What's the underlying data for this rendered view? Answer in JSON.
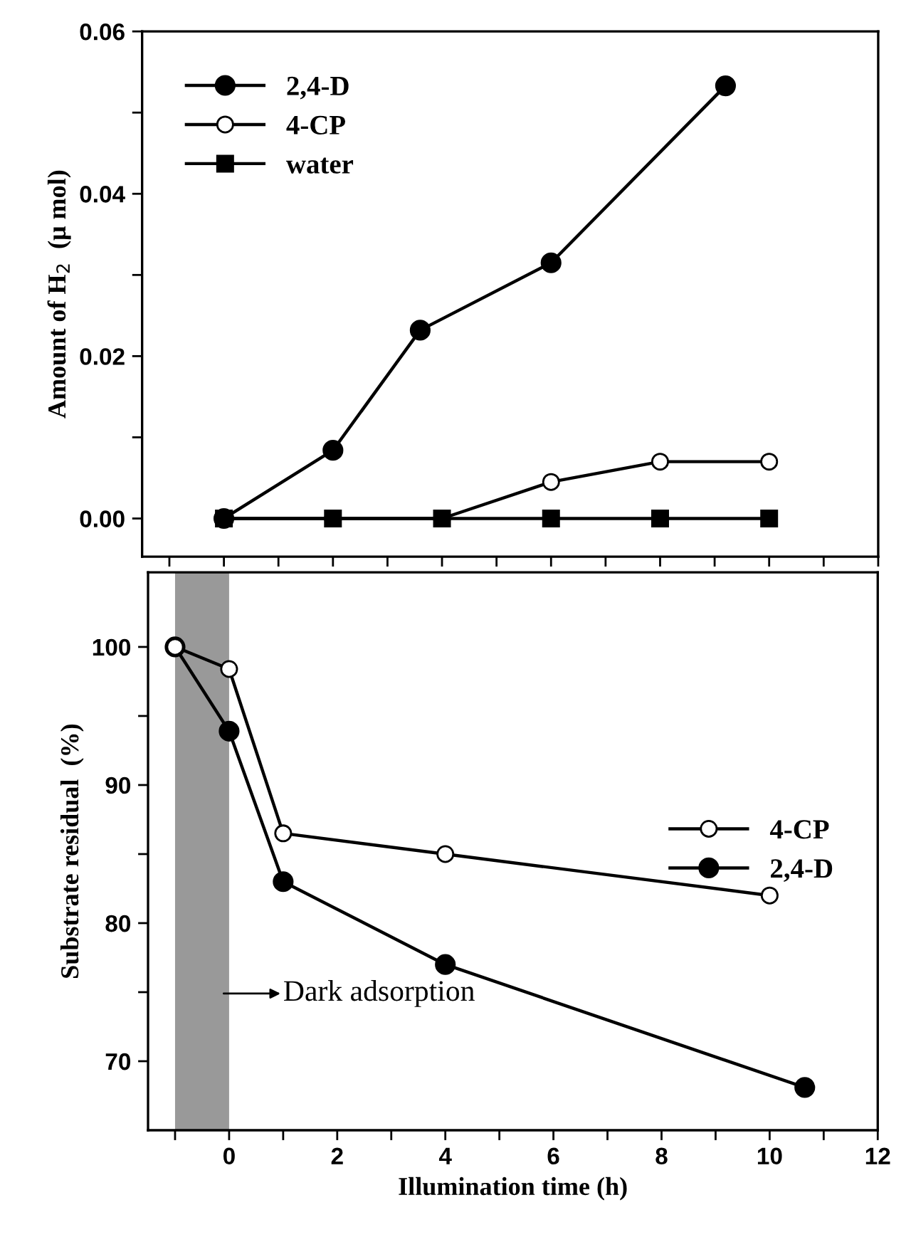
{
  "chart_data": [
    {
      "type": "line",
      "ylabel": "Amount of H$_{2}$  (μ mol)",
      "xlim": [
        -1.5,
        12
      ],
      "ylim": [
        -0.0047,
        0.06
      ],
      "xticks": [
        {
          "value": -1,
          "label": null
        },
        {
          "value": 0,
          "label": null
        },
        {
          "value": 1,
          "label": null
        },
        {
          "value": 2,
          "label": null
        },
        {
          "value": 3,
          "label": null
        },
        {
          "value": 4,
          "label": null
        },
        {
          "value": 5,
          "label": null
        },
        {
          "value": 6,
          "label": null
        },
        {
          "value": 7,
          "label": null
        },
        {
          "value": 8,
          "label": null
        },
        {
          "value": 9,
          "label": null
        },
        {
          "value": 10,
          "label": null
        },
        {
          "value": 11,
          "label": null
        },
        {
          "value": 12,
          "label": null
        }
      ],
      "yticks": [
        {
          "value": 0,
          "label": "0.00"
        },
        {
          "value": 0.01,
          "label": null
        },
        {
          "value": 0.02,
          "label": "0.02"
        },
        {
          "value": 0.03,
          "label": null
        },
        {
          "value": 0.04,
          "label": "0.04"
        },
        {
          "value": 0.05,
          "label": null
        },
        {
          "value": 0.06,
          "label": "0.06"
        }
      ],
      "tick_labels": "y",
      "legend": "top left",
      "grid": false,
      "series": [
        {
          "name": "2,4-D",
          "color": "#000000",
          "marker": "circle",
          "x": [
            0,
            2,
            3.6,
            6,
            9.2
          ],
          "values": [
            0,
            0.0084,
            0.0232,
            0.0315,
            0.0533
          ]
        },
        {
          "name": "4-CP",
          "color": "#000000",
          "marker": "circle",
          "colors": [
            "#ffffff",
            "#ffffff",
            "#ffffff",
            "#ffffff",
            "#ffffff",
            "#ffffff"
          ],
          "x": [
            0,
            2,
            4,
            6,
            8,
            10
          ],
          "values": [
            0,
            0,
            0,
            0.0045,
            0.007,
            0.007
          ]
        },
        {
          "name": "water",
          "color": "#000000",
          "marker": "square",
          "x": [
            0,
            2,
            4,
            6,
            8,
            10
          ],
          "values": [
            0,
            0,
            0,
            0,
            0,
            0
          ]
        }
      ]
    },
    {
      "type": "line",
      "xlabel": "Illumination time (h)",
      "ylabel": "Substrate residual  (%)",
      "xlim": [
        -1.5,
        12
      ],
      "ylim": [
        65,
        105.4
      ],
      "xticks": [
        {
          "value": -1,
          "label": null
        },
        0,
        {
          "value": 1,
          "label": null
        },
        2,
        {
          "value": 3,
          "label": null
        },
        4,
        {
          "value": 5,
          "label": null
        },
        6,
        {
          "value": 7,
          "label": null
        },
        8,
        {
          "value": 9,
          "label": null
        },
        10,
        {
          "value": 11,
          "label": null
        },
        12
      ],
      "yticks": [
        70,
        {
          "value": 75,
          "label": null
        },
        80,
        {
          "value": 85,
          "label": null
        },
        90,
        {
          "value": 95,
          "label": null
        },
        100
      ],
      "legend": "right",
      "grid": false,
      "bands": [
        {
          "axis": "x",
          "from": -1,
          "to": 0,
          "label": "Dark adsorption",
          "color": "#999999"
        }
      ],
      "series": [
        {
          "name": "4-CP",
          "color": "#000000",
          "marker": "circle",
          "colors": [
            "#ffffff",
            "#ffffff",
            "#ffffff",
            "#ffffff",
            "#ffffff"
          ],
          "x": [
            -1,
            0,
            1,
            4,
            10
          ],
          "values": [
            100,
            98.4,
            86.5,
            85.0,
            82.0
          ]
        },
        {
          "name": "2,4-D",
          "color": "#000000",
          "marker": "circle",
          "x": [
            -1,
            0,
            1,
            4,
            10.65
          ],
          "values": [
            100,
            93.9,
            83.0,
            77.0,
            68.1
          ]
        }
      ]
    }
  ]
}
